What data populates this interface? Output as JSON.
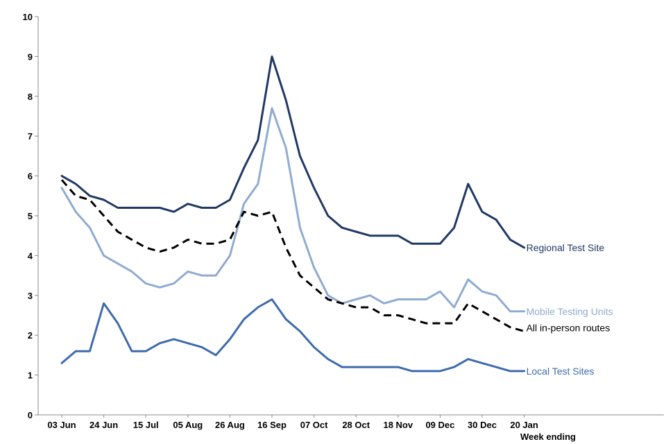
{
  "chart_data": {
    "type": "line",
    "title": "",
    "xlabel": "Week ending",
    "ylabel": "",
    "ylim": [
      0,
      10
    ],
    "yticks": [
      0,
      1,
      2,
      3,
      4,
      5,
      6,
      7,
      8,
      9,
      10
    ],
    "x_tick_labels": [
      "03 Jun",
      "24 Jun",
      "15 Jul",
      "05 Aug",
      "26 Aug",
      "16 Sep",
      "07 Oct",
      "28 Oct",
      "18 Nov",
      "09 Dec",
      "30 Dec",
      "20 Jan"
    ],
    "x_tick_every": 3,
    "num_weeks": 34,
    "series": [
      {
        "name": "Regional Test Site",
        "color": "#1f3864",
        "dash": false,
        "values": [
          6.0,
          5.8,
          5.5,
          5.4,
          5.2,
          5.2,
          5.2,
          5.2,
          5.1,
          5.3,
          5.2,
          5.2,
          5.4,
          6.2,
          6.9,
          9.0,
          7.9,
          6.5,
          5.7,
          5.0,
          4.7,
          4.6,
          4.5,
          4.5,
          4.5,
          4.3,
          4.3,
          4.3,
          4.7,
          5.8,
          5.1,
          4.9,
          4.4,
          4.2
        ]
      },
      {
        "name": "Mobile Testing Units",
        "color": "#8fabd0",
        "dash": false,
        "values": [
          5.7,
          5.1,
          4.7,
          4.0,
          3.8,
          3.6,
          3.3,
          3.2,
          3.3,
          3.6,
          3.5,
          3.5,
          4.0,
          5.3,
          5.8,
          7.7,
          6.7,
          4.7,
          3.7,
          3.0,
          2.8,
          2.9,
          3.0,
          2.8,
          2.9,
          2.9,
          2.9,
          3.1,
          2.7,
          3.4,
          3.1,
          3.0,
          2.6,
          2.6
        ]
      },
      {
        "name": "All in-person routes",
        "color": "#000000",
        "dash": true,
        "values": [
          5.9,
          5.5,
          5.4,
          5.0,
          4.6,
          4.4,
          4.2,
          4.1,
          4.2,
          4.4,
          4.3,
          4.3,
          4.4,
          5.1,
          5.0,
          5.1,
          4.2,
          3.5,
          3.2,
          2.9,
          2.8,
          2.7,
          2.7,
          2.5,
          2.5,
          2.4,
          2.3,
          2.3,
          2.3,
          2.8,
          2.6,
          2.4,
          2.2,
          2.1
        ]
      },
      {
        "name": "Local Test Sites",
        "color": "#3e6aad",
        "dash": false,
        "values": [
          1.3,
          1.6,
          1.6,
          2.8,
          2.3,
          1.6,
          1.6,
          1.8,
          1.9,
          1.8,
          1.7,
          1.5,
          1.9,
          2.4,
          2.7,
          2.9,
          2.4,
          2.1,
          1.7,
          1.4,
          1.2,
          1.2,
          1.2,
          1.2,
          1.2,
          1.1,
          1.1,
          1.1,
          1.2,
          1.4,
          1.3,
          1.2,
          1.1,
          1.1
        ]
      }
    ]
  }
}
